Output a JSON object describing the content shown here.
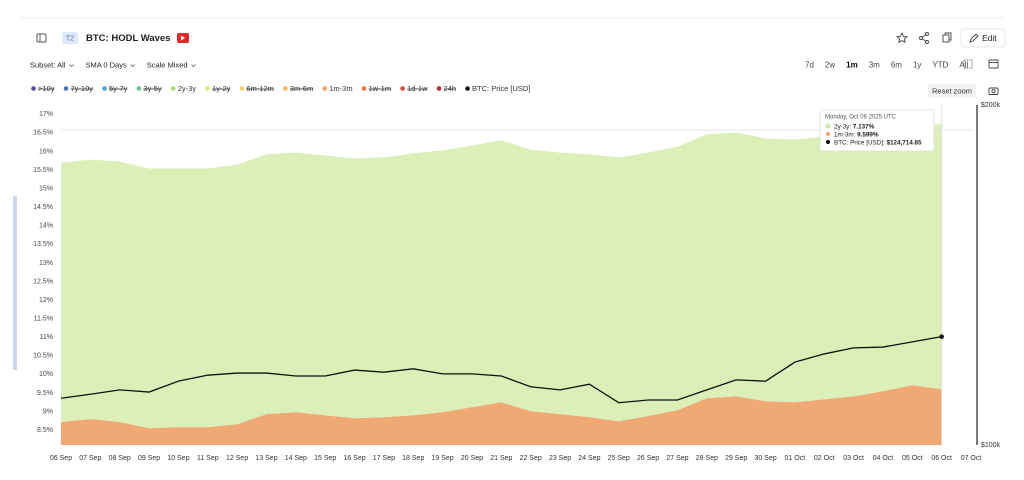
{
  "header": {
    "badge": "T2",
    "title": "BTC: HODL Waves",
    "edit": "Edit"
  },
  "toolbar": {
    "options": [
      "Subset: All",
      "SMA 0 Days",
      "Scale Mixed"
    ],
    "ranges": [
      "7d",
      "2w",
      "1m",
      "3m",
      "6m",
      "1y",
      "YTD",
      "All"
    ],
    "active_range": 2,
    "reset": "Reset zoom"
  },
  "chart_data": {
    "type": "area",
    "stacked": true,
    "watermark": "glassnode",
    "categories": [
      "06 Sep",
      "07 Sep",
      "08 Sep",
      "09 Sep",
      "10 Sep",
      "11 Sep",
      "12 Sep",
      "13 Sep",
      "14 Sep",
      "15 Sep",
      "16 Sep",
      "17 Sep",
      "18 Sep",
      "19 Sep",
      "20 Sep",
      "21 Sep",
      "22 Sep",
      "23 Sep",
      "24 Sep",
      "25 Sep",
      "26 Sep",
      "27 Sep",
      "28 Sep",
      "29 Sep",
      "30 Sep",
      "01 Oct",
      "02 Oct",
      "03 Oct",
      "04 Oct",
      "05 Oct",
      "06 Oct",
      "07 Oct"
    ],
    "series": [
      {
        "name": "1m-3m",
        "type": "area",
        "color": "#f0a874",
        "values": [
          8.72,
          8.8,
          8.72,
          8.55,
          8.58,
          8.58,
          8.66,
          8.93,
          8.98,
          8.9,
          8.82,
          8.85,
          8.9,
          8.98,
          9.12,
          9.25,
          9.01,
          8.93,
          8.85,
          8.74,
          8.88,
          9.04,
          9.36,
          9.41,
          9.28,
          9.25,
          9.33,
          9.41,
          9.55,
          9.71,
          9.599,
          null
        ]
      },
      {
        "name": "2y-3y",
        "type": "area",
        "color": "#dcefb8",
        "values": [
          6.98,
          6.98,
          7.01,
          6.99,
          6.96,
          6.96,
          6.99,
          6.99,
          6.99,
          6.99,
          6.99,
          6.99,
          7.05,
          7.05,
          7.04,
          7.05,
          7.04,
          7.04,
          7.07,
          7.1,
          7.09,
          7.09,
          7.1,
          7.1,
          7.07,
          7.07,
          7.07,
          7.13,
          7.04,
          6.96,
          7.137,
          null
        ]
      },
      {
        "name": "BTC: Price [USD]",
        "type": "line",
        "axis": "y2",
        "color": "#111111",
        "values": [
          110000,
          110900,
          111900,
          111400,
          113900,
          115300,
          115800,
          115800,
          115100,
          115100,
          116500,
          116000,
          116800,
          115600,
          115600,
          115100,
          112600,
          111900,
          113200,
          109000,
          109600,
          109600,
          111900,
          114200,
          113900,
          118400,
          120400,
          121900,
          122100,
          123400,
          124714.85,
          null
        ]
      }
    ],
    "ylim": [
      8.1,
      17.25
    ],
    "yticks": [
      {
        "value": 8.5,
        "label": "8.5%"
      },
      {
        "value": 9,
        "label": "9%"
      },
      {
        "value": 9.5,
        "label": "9.5%"
      },
      {
        "value": 10,
        "label": "10%"
      },
      {
        "value": 10.5,
        "label": "10.5%"
      },
      {
        "value": 11,
        "label": "11%"
      },
      {
        "value": 11.5,
        "label": "11.5%"
      },
      {
        "value": 12,
        "label": "12%"
      },
      {
        "value": 12.5,
        "label": "12.5%"
      },
      {
        "value": 13,
        "label": "13%"
      },
      {
        "value": 13.5,
        "label": "13.5%"
      },
      {
        "value": 14,
        "label": "14%"
      },
      {
        "value": 14.5,
        "label": "14.5%"
      },
      {
        "value": 15,
        "label": "15%"
      },
      {
        "value": 15.5,
        "label": "15.5%"
      },
      {
        "value": 16,
        "label": "16%"
      },
      {
        "value": 16.5,
        "label": "16.5%"
      },
      {
        "value": 17,
        "label": "17%"
      }
    ],
    "y2lim": [
      100000,
      200000
    ],
    "y2log": true,
    "y2ticks": [
      {
        "value": 100000,
        "label": "$100k"
      },
      {
        "value": 200000,
        "label": "$200k"
      }
    ],
    "grid": false,
    "legend": [
      {
        "name": ">10y",
        "color": "#5b4ea8",
        "hidden": true
      },
      {
        "name": "7y-10y",
        "color": "#4a6fb0",
        "hidden": true
      },
      {
        "name": "5y-7y",
        "color": "#4aa3c8",
        "hidden": true
      },
      {
        "name": "3y-5y",
        "color": "#6cc28c",
        "hidden": true
      },
      {
        "name": "2y-3y",
        "color": "#a8d977",
        "hidden": false
      },
      {
        "name": "1y-2y",
        "color": "#e6e67a",
        "hidden": true
      },
      {
        "name": "6m-12m",
        "color": "#f2d36b",
        "hidden": true
      },
      {
        "name": "3m-6m",
        "color": "#f5b35a",
        "hidden": true
      },
      {
        "name": "1m-3m",
        "color": "#f0a066",
        "hidden": false
      },
      {
        "name": "1w-1m",
        "color": "#e8743f",
        "hidden": true
      },
      {
        "name": "1d-1w",
        "color": "#d9483b",
        "hidden": true
      },
      {
        "name": "24h",
        "color": "#a8302f",
        "hidden": true
      },
      {
        "name": "BTC: Price [USD]",
        "color": "#111111",
        "hidden": false
      }
    ],
    "tooltip": {
      "title": "Monday, Oct 06 2025 UTC",
      "index": 30,
      "rows": [
        {
          "label": "2y-3y:",
          "value": "7.137%",
          "color": "#dcefb8"
        },
        {
          "label": "1m-3m:",
          "value": "9.599%",
          "color": "#f0a066"
        },
        {
          "label": "BTC: Price [USD]:",
          "value": "$124,714.85",
          "color": "#111111"
        }
      ]
    }
  }
}
